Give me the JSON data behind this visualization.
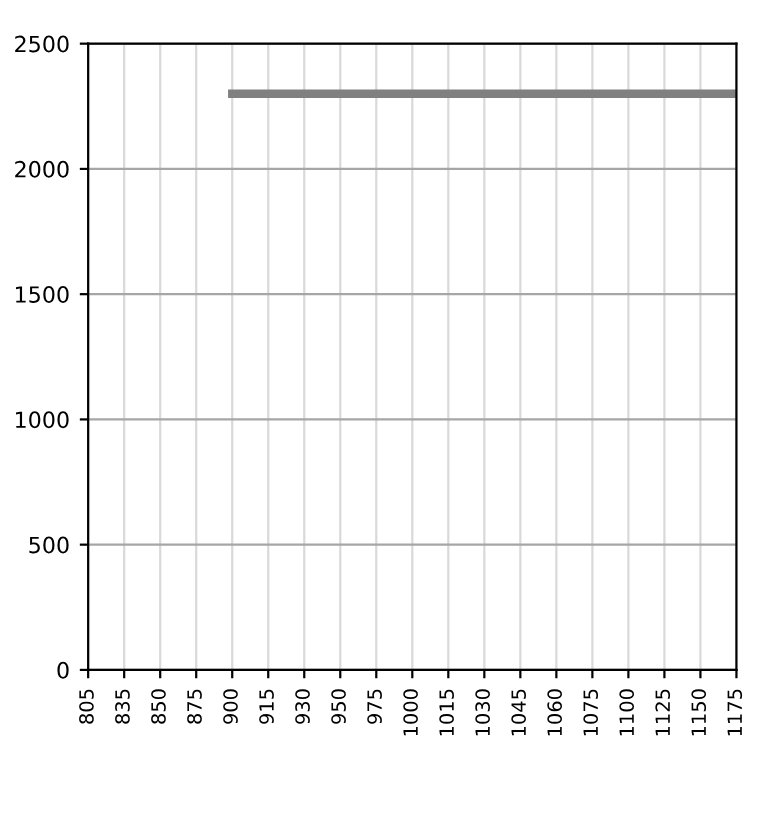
{
  "chart_data": {
    "type": "line",
    "categories": [
      "805",
      "835",
      "850",
      "875",
      "900",
      "915",
      "930",
      "950",
      "975",
      "1000",
      "1015",
      "1030",
      "1045",
      "1060",
      "1075",
      "1100",
      "1125",
      "1150",
      "1175"
    ],
    "series": [
      {
        "color": "#808080",
        "values": [
          null,
          null,
          null,
          null,
          2300,
          2300,
          2300,
          2300,
          2300,
          2300,
          2300,
          2300,
          2300,
          2300,
          2300,
          2300,
          2300,
          2300,
          2300
        ]
      }
    ],
    "ylim": [
      0,
      2500
    ],
    "yticks": [
      0,
      500,
      1000,
      1500,
      2000,
      2500
    ],
    "grid": true,
    "marker": "none",
    "line_style": "solid"
  }
}
